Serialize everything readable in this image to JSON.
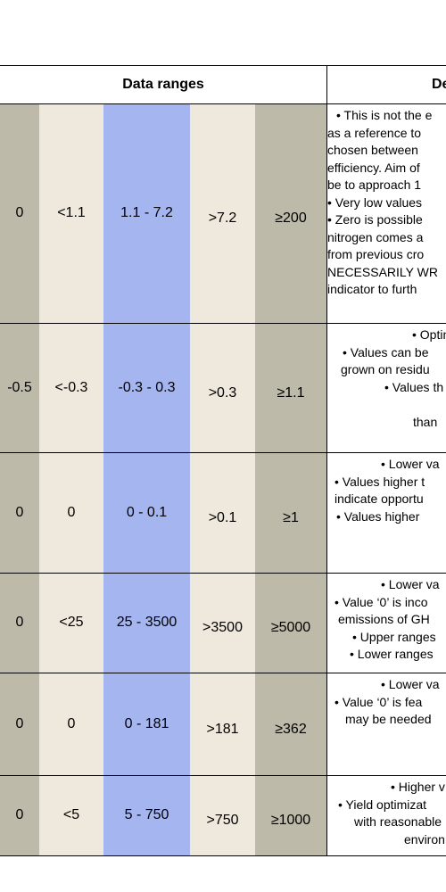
{
  "header": {
    "data_ranges": "Data ranges",
    "description_fragment": "De"
  },
  "rows": [
    {
      "values": [
        "0",
        "<1.1",
        "1.1 - 7.2",
        ">7.2",
        "≥200"
      ],
      "desc": [
        "• This is not the e",
        "as a reference to",
        "chosen between",
        "efficiency. Aim of",
        "be to approach 1",
        "• Very low values",
        "• Zero is possible",
        "nitrogen comes a",
        "from previous cro",
        "NECESSARILY WR",
        "indicator to furth"
      ]
    },
    {
      "values": [
        "-0.5",
        "<-0.3",
        "-0.3 - 0.3",
        ">0.3",
        "≥1.1"
      ],
      "desc": [
        "• Optin",
        "• Values can be",
        "grown on residu",
        "• Values th",
        "",
        "than"
      ]
    },
    {
      "values": [
        "0",
        "0",
        "0 - 0.1",
        ">0.1",
        "≥1"
      ],
      "desc": [
        "• Lower va",
        "• Values higher t",
        "indicate opportu",
        "• Values higher"
      ]
    },
    {
      "values": [
        "0",
        "<25",
        "25 - 3500",
        ">3500",
        "≥5000"
      ],
      "desc": [
        "• Lower va",
        "• Value ‘0’ is inco",
        "emissions of GH",
        "• Upper ranges",
        "• Lower ranges"
      ]
    },
    {
      "values": [
        "0",
        "0",
        "0 - 181",
        ">181",
        "≥362"
      ],
      "desc": [
        "• Lower va",
        "• Value ‘0’ is fea",
        "may be needed"
      ]
    },
    {
      "values": [
        "0",
        "<5",
        "5 - 750",
        ">750",
        "≥1000"
      ],
      "desc": [
        "• Higher v",
        "• Yield optimizat",
        "with reasonable",
        "environ"
      ]
    }
  ]
}
